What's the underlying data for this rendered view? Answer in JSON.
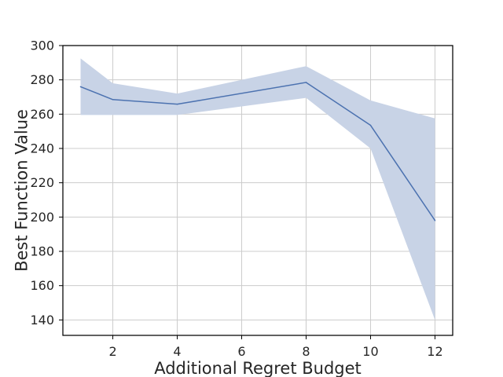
{
  "chart_data": {
    "type": "line",
    "xlabel": "Additional Regret Budget",
    "ylabel": "Best Function Value",
    "xlim": [
      0.45,
      12.55
    ],
    "ylim": [
      131,
      300
    ],
    "xticks": [
      2,
      4,
      6,
      8,
      10,
      12
    ],
    "yticks": [
      140,
      160,
      180,
      200,
      220,
      240,
      260,
      280,
      300
    ],
    "grid": true,
    "legend": "none",
    "series": [
      {
        "color": "#4c72b0",
        "band_color": "#c8d3e6",
        "x": [
          1,
          2,
          4,
          8,
          10,
          12
        ],
        "y": [
          276,
          268.5,
          265.8,
          278.5,
          253.5,
          198
        ],
        "lower": [
          259.5,
          259.5,
          259.5,
          269.5,
          240,
          140
        ],
        "upper": [
          292.5,
          278,
          272,
          288,
          268,
          257.5
        ]
      }
    ]
  }
}
